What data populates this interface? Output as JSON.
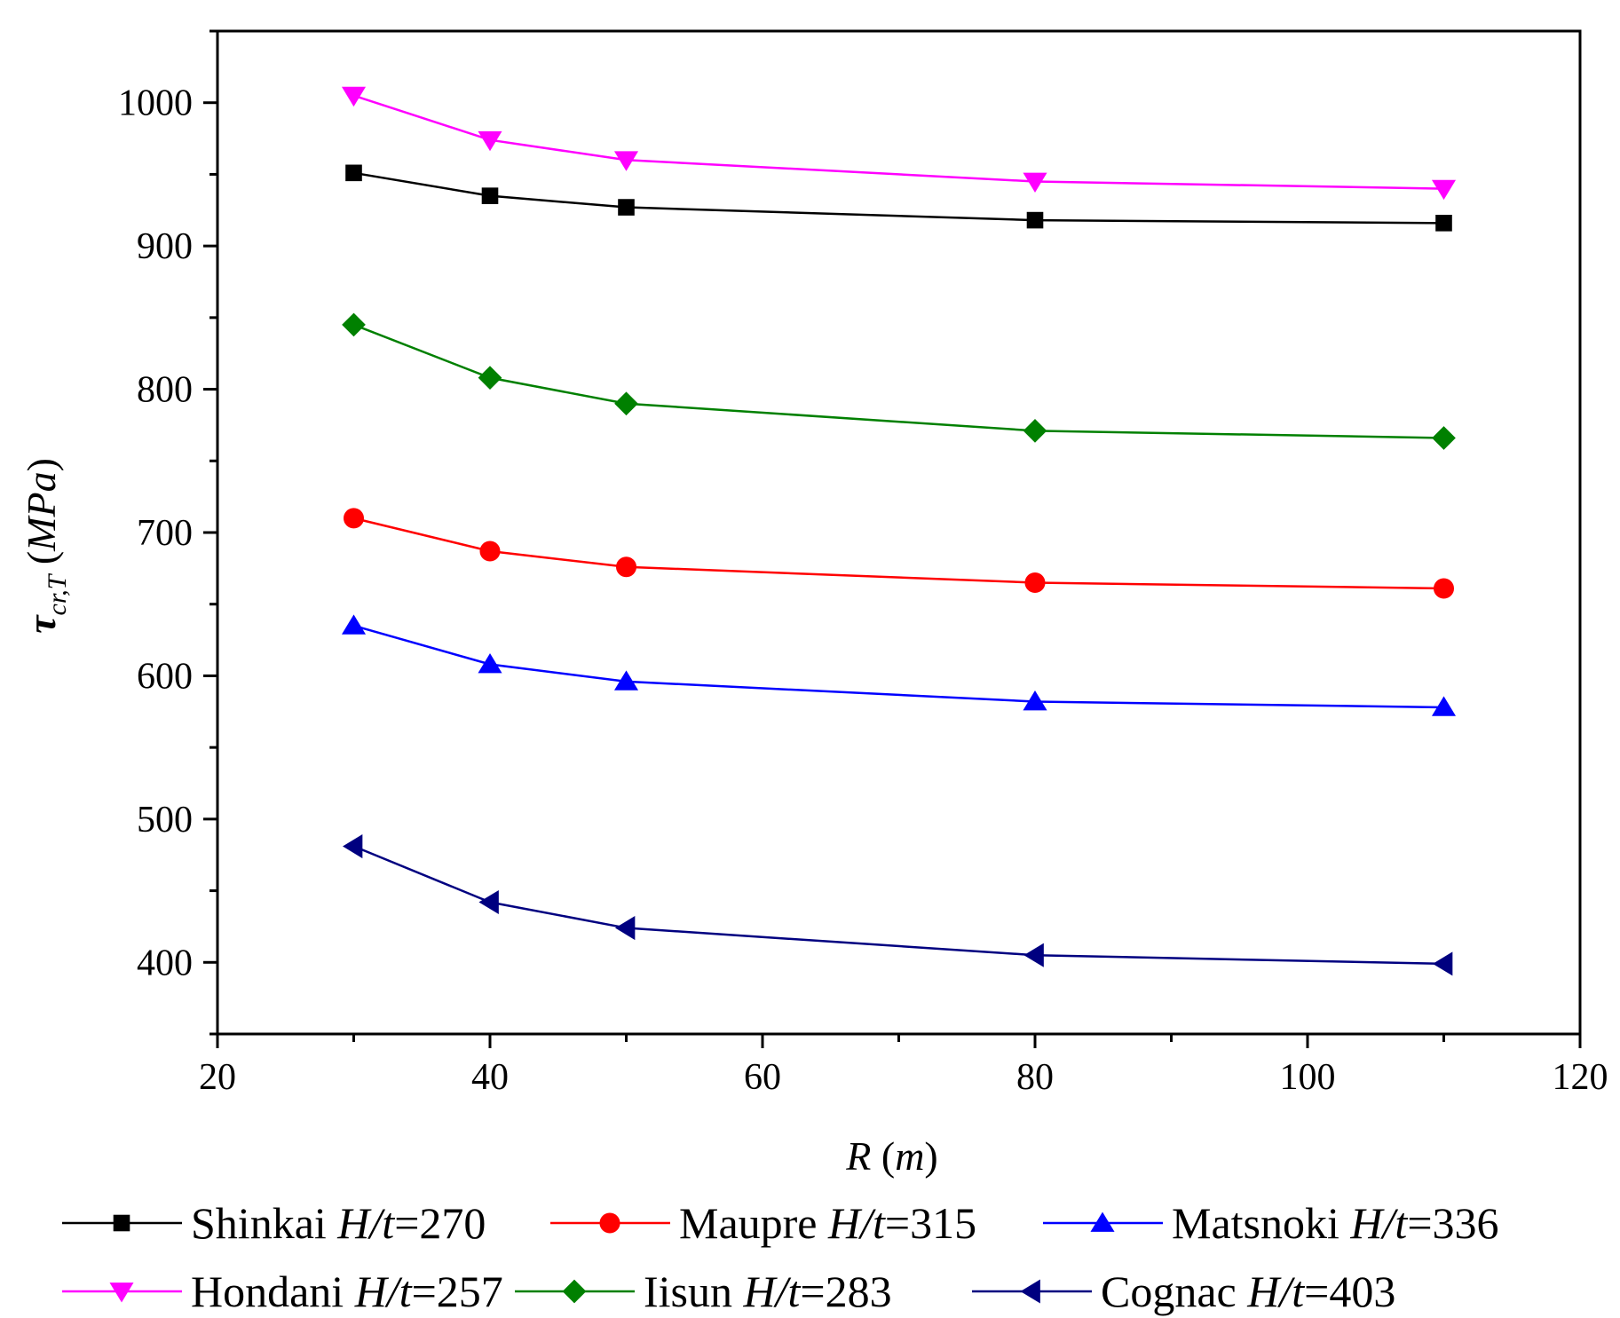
{
  "chart_data": {
    "type": "line",
    "xlabel": "R (m)",
    "ylabel": "τcr,T (MPa)",
    "xlim": [
      20,
      120
    ],
    "ylim": [
      350,
      1050
    ],
    "xticks": [
      20,
      40,
      60,
      80,
      100,
      120
    ],
    "yticks": [
      400,
      500,
      600,
      700,
      800,
      900,
      1000
    ],
    "grid": false,
    "legend_position": "bottom",
    "x": [
      30,
      40,
      50,
      80,
      110
    ],
    "series": [
      {
        "name": "Shinkai H/t=270",
        "label_name": "Shinkai",
        "label_ratio": "270",
        "color": "#000000",
        "marker": "square",
        "values": [
          951,
          935,
          927,
          918,
          916
        ]
      },
      {
        "name": "Maupre H/t=315",
        "label_name": "Maupre",
        "label_ratio": "315",
        "color": "#ff0000",
        "marker": "circle",
        "values": [
          710,
          687,
          676,
          665,
          661
        ]
      },
      {
        "name": "Matsnoki H/t=336",
        "label_name": "Matsnoki",
        "label_ratio": "336",
        "color": "#0000ff",
        "marker": "triangle-up",
        "values": [
          635,
          608,
          596,
          582,
          578
        ]
      },
      {
        "name": "Hondani H/t=257",
        "label_name": "Hondani",
        "label_ratio": "257",
        "color": "#ff00ff",
        "marker": "triangle-down",
        "values": [
          1005,
          974,
          960,
          945,
          940
        ]
      },
      {
        "name": "Iisun H/t=283",
        "label_name": "Iisun",
        "label_ratio": "283",
        "color": "#008000",
        "marker": "diamond",
        "values": [
          845,
          808,
          790,
          771,
          766
        ]
      },
      {
        "name": "Cognac H/t=403",
        "label_name": "Cognac",
        "label_ratio": "403",
        "color": "#000080",
        "marker": "triangle-left",
        "values": [
          481,
          442,
          424,
          405,
          399
        ]
      }
    ]
  }
}
